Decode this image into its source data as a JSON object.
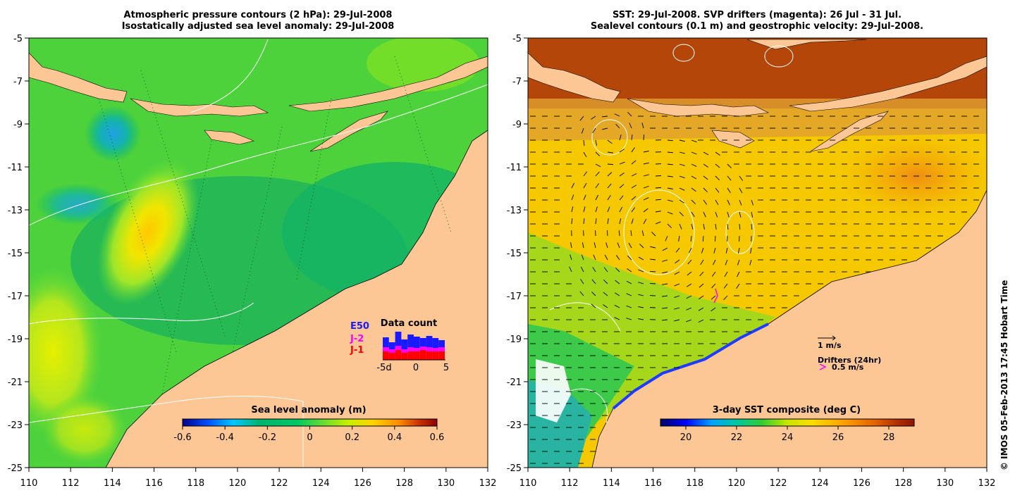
{
  "left_panel": {
    "title_line1": "Atmospheric pressure contours (2 hPa): 29-Jul-2008",
    "title_line2": "Isostatically adjusted sea level anomaly: 29-Jul-2008",
    "colorbar_label": "Sea level anomaly (m)",
    "colorbar_ticks": [
      "-0.6",
      "-0.4",
      "-0.2",
      "0",
      "0.2",
      "0.4",
      "0.6"
    ],
    "legend": {
      "items": [
        {
          "label": "E50",
          "color": "#1a1aff"
        },
        {
          "label": "J-2",
          "color": "#ff00ff"
        },
        {
          "label": "J-1",
          "color": "#ff0000"
        }
      ],
      "count_title": "Data count",
      "count_ticks": [
        "-5d",
        "0",
        "5"
      ]
    }
  },
  "right_panel": {
    "title_line1": "SST: 29-Jul-2008. SVP drifters (magenta): 26 Jul - 31 Jul.",
    "title_line2": "Sealevel contours (0.1 m) and geostrophic velocity: 29-Jul-2008.",
    "colorbar_label": "3-day SST composite (deg C)",
    "colorbar_ticks": [
      "20",
      "22",
      "24",
      "26",
      "28"
    ],
    "velocity_label": "1 m/s",
    "drifters_label": "Drifters (24hr)",
    "drifters_speed": "0.5 m/s"
  },
  "axes": {
    "y_ticks": [
      "-5",
      "-7",
      "-9",
      "-11",
      "-13",
      "-15",
      "-17",
      "-19",
      "-21",
      "-23",
      "-25"
    ],
    "x_ticks": [
      "110",
      "112",
      "114",
      "116",
      "118",
      "120",
      "122",
      "124",
      "126",
      "128",
      "130",
      "132"
    ]
  },
  "credit": "© IMOS 05-Feb-2013 17:45 Hobart Time",
  "colors": {
    "land": "#fcc794",
    "sla_ramp": [
      "#00008c",
      "#0050ff",
      "#00c8ff",
      "#00b46e",
      "#00c864",
      "#64dc32",
      "#c8f000",
      "#ffd200",
      "#ff8c00",
      "#c83200",
      "#8c0000"
    ],
    "sst_ramp": [
      "#000064",
      "#0000ff",
      "#00a0ff",
      "#00c8a0",
      "#32cd32",
      "#c8e600",
      "#ffdc00",
      "#ffa000",
      "#e66400",
      "#b43200",
      "#8c1400"
    ]
  }
}
